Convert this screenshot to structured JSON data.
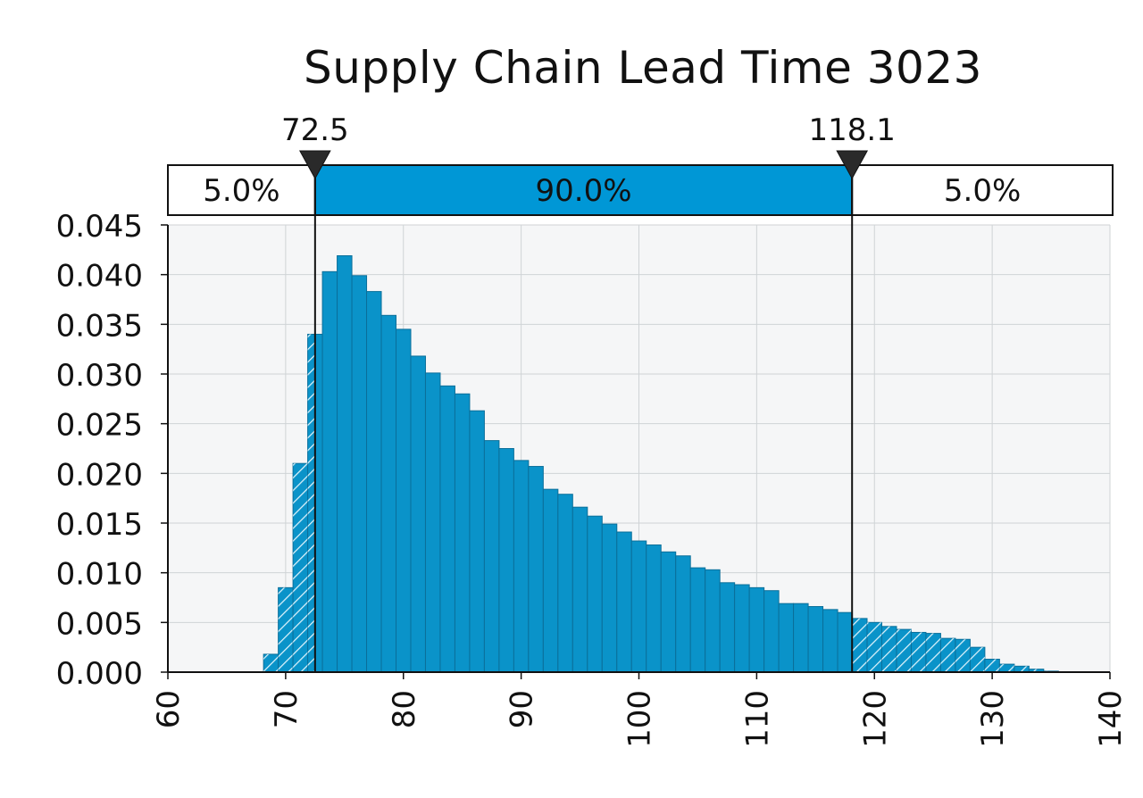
{
  "chart_data": {
    "type": "bar",
    "title": "Supply Chain Lead Time 3023",
    "xlabel": "",
    "ylabel": "",
    "xlim": [
      60,
      140
    ],
    "ylim": [
      0,
      0.045
    ],
    "x_ticks": [
      "60",
      "70",
      "80",
      "90",
      "100",
      "110",
      "120",
      "130",
      "140"
    ],
    "y_ticks": [
      "0.000",
      "0.005",
      "0.010",
      "0.015",
      "0.020",
      "0.025",
      "0.030",
      "0.035",
      "0.040",
      "0.045"
    ],
    "grid": true,
    "bin_width": 1.25,
    "x": [
      68.75,
      70.0,
      71.25,
      72.5,
      73.75,
      75.0,
      76.25,
      77.5,
      78.75,
      80.0,
      81.25,
      82.5,
      83.75,
      85.0,
      86.25,
      87.5,
      88.75,
      90.0,
      91.25,
      92.5,
      93.75,
      95.0,
      96.25,
      97.5,
      98.75,
      100.0,
      101.25,
      102.5,
      103.75,
      105.0,
      106.25,
      107.5,
      108.75,
      110.0,
      111.25,
      112.5,
      113.75,
      115.0,
      116.25,
      117.5,
      118.75,
      120.0,
      121.25,
      122.5,
      123.75,
      125.0,
      126.25,
      127.5,
      128.75,
      130.0,
      131.25,
      132.5,
      133.75,
      135.0
    ],
    "values": [
      0.0018,
      0.0085,
      0.021,
      0.034,
      0.0403,
      0.0419,
      0.0399,
      0.0383,
      0.0359,
      0.0345,
      0.0318,
      0.0301,
      0.0288,
      0.028,
      0.0263,
      0.0233,
      0.0225,
      0.0213,
      0.0207,
      0.0184,
      0.0179,
      0.0166,
      0.0157,
      0.0149,
      0.0141,
      0.0132,
      0.0128,
      0.0121,
      0.0117,
      0.0105,
      0.0103,
      0.009,
      0.0088,
      0.0085,
      0.0082,
      0.0069,
      0.0069,
      0.0066,
      0.0063,
      0.006,
      0.0054,
      0.005,
      0.0046,
      0.0043,
      0.004,
      0.0039,
      0.0034,
      0.0033,
      0.0025,
      0.0013,
      0.0008,
      0.0006,
      0.0003,
      0.0001
    ],
    "bar_color": "#0a93c9",
    "bar_edge_color": "#0a6f9a",
    "tail_hatch_color": "#d9f1fb",
    "delimiters": {
      "lower": 72.5,
      "upper": 118.1,
      "lower_label": "72.5",
      "upper_label": "118.1",
      "regions": [
        "5.0%",
        "90.0%",
        "5.0%"
      ],
      "middle_fill": "#0097d6"
    }
  }
}
